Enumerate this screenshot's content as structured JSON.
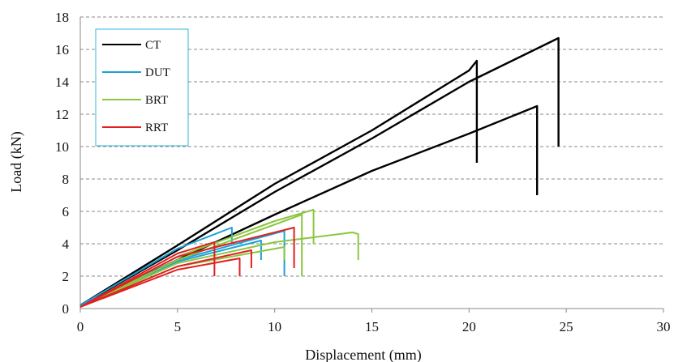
{
  "chart_data": {
    "type": "line",
    "title": "",
    "xlabel": "Displacement  (mm)",
    "ylabel": "Load  (kN)",
    "xlim": [
      0,
      30
    ],
    "ylim": [
      0,
      18
    ],
    "x_ticks": [
      "0",
      "5",
      "10",
      "15",
      "20",
      "25",
      "30"
    ],
    "y_ticks": [
      "0",
      "2",
      "4",
      "6",
      "8",
      "10",
      "12",
      "14",
      "16",
      "18"
    ],
    "grid": "horizontal dashed",
    "legend_position": "top-left",
    "colors": {
      "CT": "#000000",
      "DUT": "#1ba1d6",
      "BRT": "#8cc63f",
      "RRT": "#e02020"
    },
    "legend": [
      "CT",
      "DUT",
      "BRT",
      "RRT"
    ],
    "series": [
      {
        "name": "CT",
        "x": [
          0,
          5,
          10,
          15,
          20,
          20.4,
          20.4
        ],
        "y": [
          0.2,
          3.9,
          7.7,
          11.0,
          14.7,
          15.3,
          9.0
        ]
      },
      {
        "name": "CT",
        "x": [
          0,
          5,
          10,
          15,
          20,
          24.6,
          24.6
        ],
        "y": [
          0.2,
          3.6,
          7.2,
          10.5,
          14.0,
          16.7,
          10.0
        ]
      },
      {
        "name": "CT",
        "x": [
          0,
          5,
          10,
          15,
          20,
          23.5,
          23.5
        ],
        "y": [
          0.2,
          3.0,
          5.8,
          8.5,
          10.8,
          12.5,
          7.0
        ]
      },
      {
        "name": "DUT",
        "x": [
          0,
          5,
          7.8,
          7.8
        ],
        "y": [
          0.2,
          3.7,
          5.0,
          4.0
        ]
      },
      {
        "name": "DUT",
        "x": [
          0,
          5,
          10.5,
          10.5
        ],
        "y": [
          0.2,
          3.0,
          4.8,
          2.0
        ]
      },
      {
        "name": "DUT",
        "x": [
          0,
          5,
          9.3,
          9.3
        ],
        "y": [
          0.2,
          2.9,
          4.2,
          3.0
        ]
      },
      {
        "name": "BRT",
        "x": [
          0,
          5,
          10,
          12.0,
          12.0
        ],
        "y": [
          0.1,
          3.2,
          5.4,
          6.1,
          4.0
        ]
      },
      {
        "name": "BRT",
        "x": [
          0,
          5,
          11.4,
          11.4
        ],
        "y": [
          0.1,
          3.0,
          5.8,
          2.0
        ]
      },
      {
        "name": "BRT",
        "x": [
          0,
          5,
          10,
          14.0,
          14.3,
          14.3
        ],
        "y": [
          0.1,
          2.8,
          4.1,
          4.7,
          4.6,
          3.0
        ]
      },
      {
        "name": "BRT",
        "x": [
          0,
          5,
          10.5,
          10.5
        ],
        "y": [
          0.1,
          2.6,
          3.8,
          3.0
        ]
      },
      {
        "name": "RRT",
        "x": [
          0,
          5,
          11.0,
          11.0
        ],
        "y": [
          0.1,
          3.2,
          5.0,
          2.5
        ]
      },
      {
        "name": "RRT",
        "x": [
          0,
          5,
          6.9,
          6.9
        ],
        "y": [
          0.1,
          3.4,
          4.1,
          2.0
        ]
      },
      {
        "name": "RRT",
        "x": [
          0,
          5,
          8.8,
          8.8
        ],
        "y": [
          0.1,
          2.6,
          3.6,
          2.5
        ]
      },
      {
        "name": "RRT",
        "x": [
          0,
          5,
          8.2,
          8.2
        ],
        "y": [
          0.1,
          2.4,
          3.1,
          2.0
        ]
      }
    ]
  }
}
